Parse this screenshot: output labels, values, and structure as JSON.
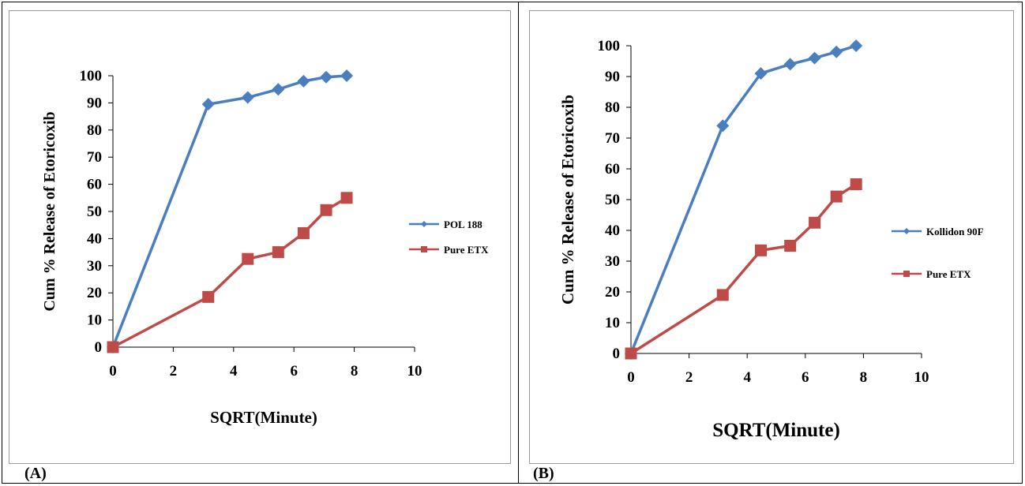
{
  "panels": [
    {
      "label": "(A)"
    },
    {
      "label": "(B)"
    }
  ],
  "colors": {
    "series_blue": "#4a7ebf",
    "series_red": "#be4b48",
    "axis": "#000000"
  },
  "chart_data": [
    {
      "type": "line",
      "title": "",
      "xlabel": "SQRT(Minute)",
      "ylabel": "Cum % Release of Etoricoxib",
      "xlim": [
        0,
        10
      ],
      "ylim": [
        0,
        100
      ],
      "xticks": [
        0,
        2,
        4,
        6,
        8,
        10
      ],
      "yticks": [
        0,
        10,
        20,
        30,
        40,
        50,
        60,
        70,
        80,
        90,
        100
      ],
      "grid": false,
      "legend_position": "right",
      "series": [
        {
          "name": "POL 188",
          "color": "#4a7ebf",
          "marker": "diamond",
          "x": [
            0,
            3.16,
            4.47,
            5.48,
            6.32,
            7.07,
            7.75
          ],
          "y": [
            0,
            89.5,
            92,
            95,
            98,
            99.5,
            100
          ]
        },
        {
          "name": "Pure ETX",
          "color": "#be4b48",
          "marker": "square",
          "x": [
            0,
            3.16,
            4.47,
            5.48,
            6.32,
            7.07,
            7.75
          ],
          "y": [
            0,
            18.5,
            32.5,
            35,
            42,
            50.5,
            55
          ]
        }
      ]
    },
    {
      "type": "line",
      "title": "",
      "xlabel": "SQRT(Minute)",
      "ylabel": "Cum % Release of Etoricoxib",
      "xlim": [
        0,
        10
      ],
      "ylim": [
        0,
        100
      ],
      "xticks": [
        0,
        2,
        4,
        6,
        8,
        10
      ],
      "yticks": [
        0,
        10,
        20,
        30,
        40,
        50,
        60,
        70,
        80,
        90,
        100
      ],
      "grid": false,
      "legend_position": "right",
      "series": [
        {
          "name": "Kollidon 90F",
          "color": "#4a7ebf",
          "marker": "diamond",
          "x": [
            0,
            3.16,
            4.47,
            5.48,
            6.32,
            7.07,
            7.75
          ],
          "y": [
            0,
            74,
            91,
            94,
            96,
            98,
            100
          ]
        },
        {
          "name": "Pure ETX",
          "color": "#be4b48",
          "marker": "square",
          "x": [
            0,
            3.16,
            4.47,
            5.48,
            6.32,
            7.07,
            7.75
          ],
          "y": [
            0,
            19,
            33.5,
            35,
            42.5,
            51,
            55
          ]
        }
      ]
    }
  ]
}
